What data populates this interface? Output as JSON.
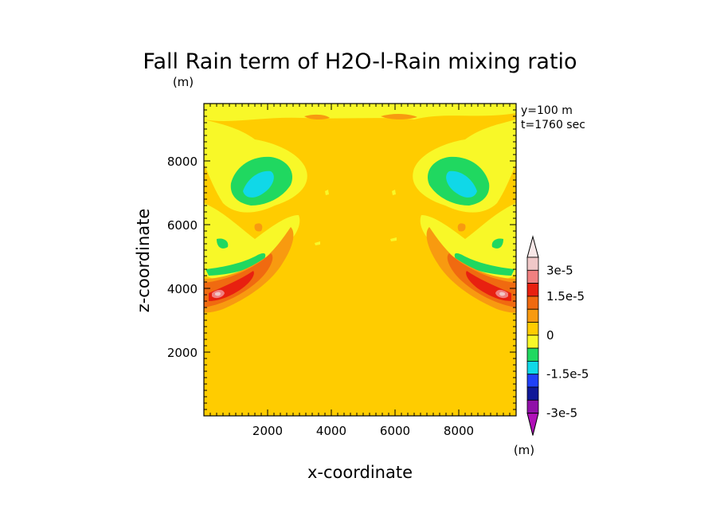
{
  "chart_data": {
    "type": "contour",
    "title": "Fall Rain term of H2O-l-Rain mixing ratio",
    "title_units": "(m)",
    "xlabel": "x-coordinate",
    "ylabel": "z-coordinate",
    "xlim": [
      0,
      9800
    ],
    "ylim": [
      0,
      9800
    ],
    "xticks": [
      "2000",
      "4000",
      "6000",
      "8000"
    ],
    "yticks": [
      "2000",
      "4000",
      "6000",
      "8000"
    ],
    "xtick_values": [
      2000,
      4000,
      6000,
      8000
    ],
    "ytick_values": [
      2000,
      4000,
      6000,
      8000
    ],
    "annotations": [
      "y=100 m",
      "t=1760 sec"
    ],
    "background_level": "0 to 0.75e-5 (yellow-orange)",
    "colorbar": {
      "levels": [
        {
          "color": "#f0c8c8"
        },
        {
          "color": "#f08080"
        },
        {
          "color": "#e82010"
        },
        {
          "color": "#f06a10"
        },
        {
          "color": "#f89a10"
        },
        {
          "color": "#ffcc00"
        },
        {
          "color": "#f8f828"
        },
        {
          "color": "#20d860"
        },
        {
          "color": "#10d8e8"
        },
        {
          "color": "#2040f8"
        },
        {
          "color": "#101898"
        },
        {
          "color": "#9010a8"
        }
      ],
      "labels": [
        "3e-5",
        "1.5e-5",
        "0",
        "-1.5e-5",
        "-3e-5"
      ],
      "units": "(m)"
    },
    "features": [
      {
        "desc": "negative lobe (green/cyan) left upper",
        "x": 1300,
        "z": 7100,
        "min_level": "-1.5e-5"
      },
      {
        "desc": "negative lobe (green/cyan) right upper",
        "x": 8500,
        "z": 7100,
        "min_level": "-1.5e-5"
      },
      {
        "desc": "positive max (red/pink) left",
        "x": 500,
        "z": 3950,
        "max_level": "3e-5"
      },
      {
        "desc": "positive max (red/pink) right",
        "x": 9300,
        "z": 3950,
        "max_level": "3e-5"
      }
    ]
  }
}
